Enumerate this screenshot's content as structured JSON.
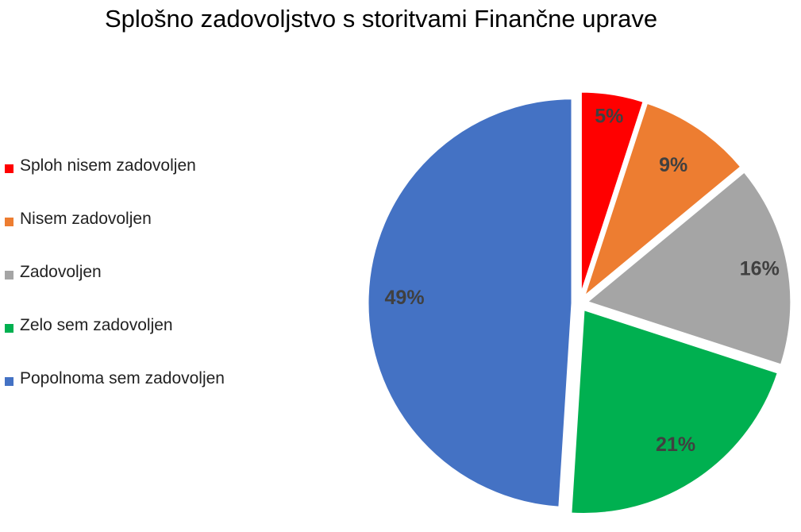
{
  "chart_data": {
    "type": "pie",
    "title": "Splošno zadovoljstvo s storitvami Finančne uprave",
    "legend_position": "left",
    "start_angle": "12 o'clock, clockwise",
    "exploded": true,
    "slices": [
      {
        "label": "Sploh nisem zadovoljen",
        "value": 5,
        "data_label": "5%",
        "color": "#FF0000"
      },
      {
        "label": "Nisem zadovoljen",
        "value": 9,
        "data_label": "9%",
        "color": "#ED7D31"
      },
      {
        "label": "Zadovoljen",
        "value": 16,
        "data_label": "16%",
        "color": "#A5A5A5"
      },
      {
        "label": "Zelo sem zadovoljen",
        "value": 21,
        "data_label": "21%",
        "color": "#00B050"
      },
      {
        "label": "Popolnoma sem zadovoljen",
        "value": 49,
        "data_label": "49%",
        "color": "#4472C4"
      }
    ]
  }
}
